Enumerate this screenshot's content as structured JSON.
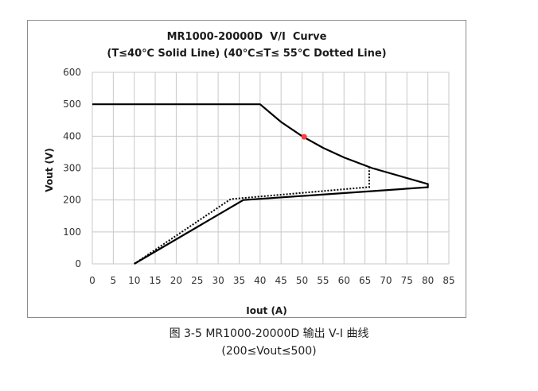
{
  "figure": {
    "caption": "图 3-5 MR1000-20000D 输出 V-I 曲线",
    "subcaption": "(200≤Vout≤500)"
  },
  "chart_data": {
    "type": "line",
    "title": "MR1000-20000D  V/I  Curve",
    "subtitle": "(T≤40℃ Solid Line) (40℃≤T≤ 55℃ Dotted Line)",
    "xlabel": "Iout (A)",
    "ylabel": "Vout (V)",
    "xlim": [
      0,
      85
    ],
    "ylim": [
      0,
      600
    ],
    "xticks": [
      "0",
      "5",
      "10",
      "15",
      "20",
      "25",
      "30",
      "35",
      "40",
      "45",
      "50",
      "55",
      "60",
      "65",
      "70",
      "75",
      "80",
      "85"
    ],
    "yticks": [
      "0",
      "100",
      "200",
      "300",
      "400",
      "500",
      "600"
    ],
    "grid": true,
    "series": [
      {
        "style": "solid",
        "color": "#000000",
        "x": [
          10,
          36,
          80,
          80,
          66.7,
          60,
          55,
          50,
          45,
          40,
          0
        ],
        "y": [
          0,
          200,
          240,
          250,
          300,
          333.3,
          363.6,
          400,
          444.4,
          500,
          500
        ]
      },
      {
        "style": "dotted",
        "color": "#000000",
        "x": [
          10,
          33,
          65.5,
          66,
          66
        ],
        "y": [
          0,
          203,
          240,
          240,
          300
        ]
      }
    ],
    "marker": {
      "x": 50.5,
      "y": 398,
      "color": "#ff3b3b"
    }
  }
}
